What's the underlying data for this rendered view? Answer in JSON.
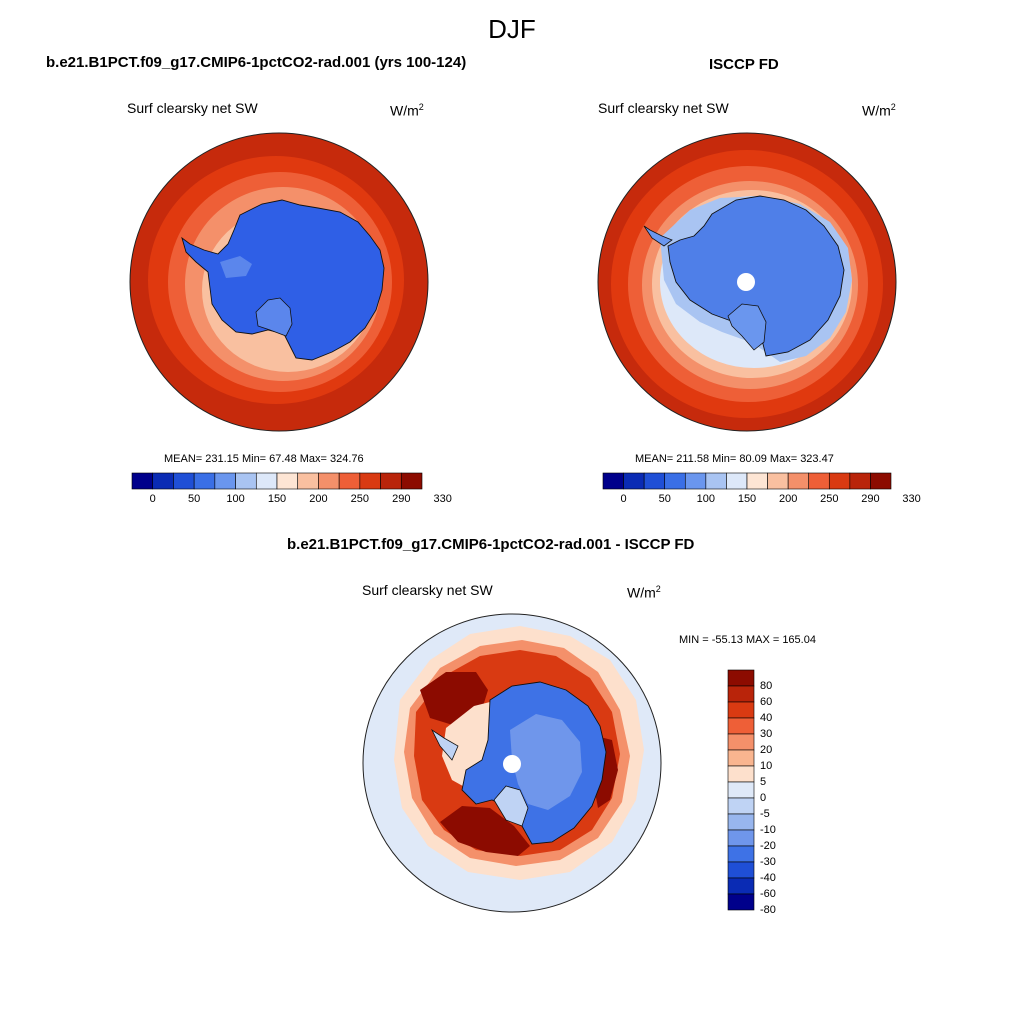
{
  "figure": {
    "season": "DJF"
  },
  "panels": [
    {
      "title": "b.e21.B1PCT.f09_g17.CMIP6-1pctCO2-rad.001 (yrs 100-124)",
      "variable": "Surf clearsky net SW",
      "units_base": "W/m",
      "units_exp": "2",
      "stats": "MEAN= 231.15  Min=  67.48  Max= 324.76",
      "colorbar_labels": [
        "0",
        "50",
        "100",
        "150",
        "200",
        "250",
        "290",
        "330"
      ]
    },
    {
      "title": "ISCCP FD",
      "variable": "Surf clearsky net SW",
      "units_base": "W/m",
      "units_exp": "2",
      "stats": "MEAN= 211.58  Min=  80.09  Max= 323.47",
      "colorbar_labels": [
        "0",
        "50",
        "100",
        "150",
        "200",
        "250",
        "290",
        "330"
      ]
    },
    {
      "title": "b.e21.B1PCT.f09_g17.CMIP6-1pctCO2-rad.001 - ISCCP FD",
      "variable": "Surf clearsky net SW",
      "units_base": "W/m",
      "units_exp": "2",
      "stats": "MIN = -55.13 MAX = 165.04",
      "colorbar_labels": [
        "80",
        "60",
        "40",
        "30",
        "20",
        "10",
        "5",
        "0",
        "-5",
        "-10",
        "-20",
        "-30",
        "-40",
        "-60",
        "-80"
      ]
    }
  ],
  "colors": {
    "abs_scale": [
      "#00008b",
      "#0a2bb4",
      "#1f4fd6",
      "#3a6fe6",
      "#6a96ee",
      "#a9c4f2",
      "#dde8f9",
      "#fde5d4",
      "#f9c0a0",
      "#f4906a",
      "#ee5f37",
      "#d93a12",
      "#b9240a",
      "#8c0b00"
    ],
    "diff_scale": [
      "#8c0b00",
      "#b9240a",
      "#d93a12",
      "#ee5f37",
      "#f4906a",
      "#f9b58f",
      "#fde0cc",
      "#dfe9f8",
      "#bfd3f4",
      "#98b6ee",
      "#6f96eb",
      "#3e72e6",
      "#1f4fd6",
      "#0a2bb4",
      "#00008b"
    ],
    "coast": "#111111"
  }
}
